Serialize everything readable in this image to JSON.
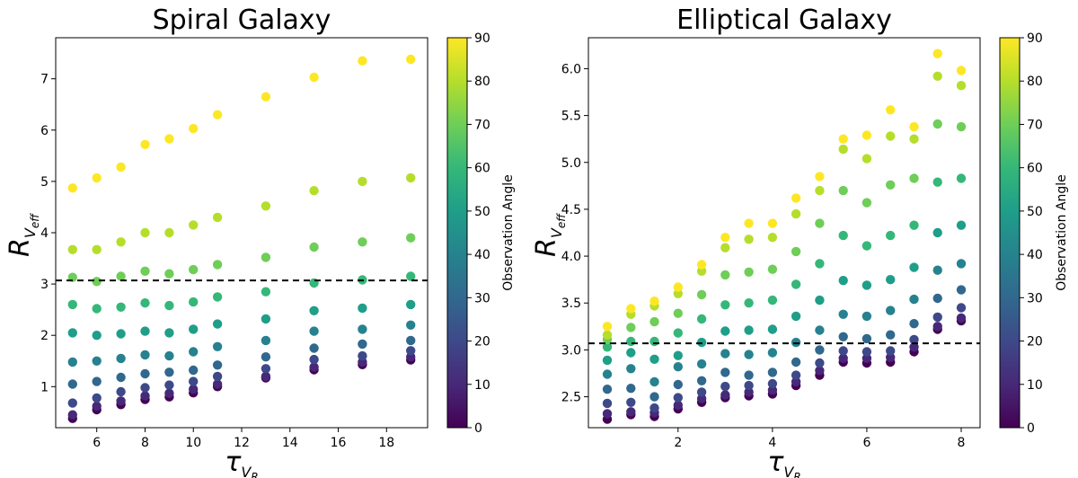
{
  "figure": {
    "colorbar_label": "Observation Angle",
    "colorbar_ticks": [
      "0",
      "10",
      "20",
      "30",
      "40",
      "50",
      "60",
      "70",
      "80",
      "90"
    ],
    "reference_line_y": 3.07
  },
  "chart_data": [
    {
      "type": "scatter",
      "title": "Spiral Galaxy",
      "xlabel": "τ_{V_R}",
      "ylabel": "R_{V_eff}",
      "xlim": [
        4.3,
        19.7
      ],
      "ylim": [
        0.2,
        7.8
      ],
      "xticks": [
        6,
        8,
        10,
        12,
        14,
        16,
        18
      ],
      "yticks": [
        1,
        2,
        3,
        4,
        5,
        6,
        7
      ],
      "x": [
        5,
        6,
        7,
        8,
        9,
        10,
        11,
        13,
        15,
        17,
        19
      ],
      "color_scale": {
        "label": "Observation Angle",
        "range": [
          0,
          90
        ],
        "colormap": "viridis"
      },
      "angles": [
        0,
        10,
        20,
        30,
        40,
        50,
        60,
        70,
        80,
        90
      ],
      "series": [
        {
          "angle": 0,
          "values": [
            0.38,
            0.55,
            0.65,
            0.75,
            0.8,
            0.88,
            1.0,
            1.17,
            1.33,
            1.43,
            1.52
          ]
        },
        {
          "angle": 10,
          "values": [
            0.45,
            0.62,
            0.72,
            0.82,
            0.87,
            0.95,
            1.05,
            1.2,
            1.38,
            1.48,
            1.58
          ]
        },
        {
          "angle": 20,
          "values": [
            0.68,
            0.78,
            0.9,
            0.98,
            1.03,
            1.1,
            1.2,
            1.35,
            1.53,
            1.6,
            1.7
          ]
        },
        {
          "angle": 30,
          "values": [
            1.05,
            1.1,
            1.18,
            1.25,
            1.28,
            1.32,
            1.42,
            1.58,
            1.75,
            1.83,
            1.9
          ]
        },
        {
          "angle": 40,
          "values": [
            1.48,
            1.5,
            1.55,
            1.62,
            1.6,
            1.68,
            1.78,
            1.9,
            2.08,
            2.12,
            2.2
          ]
        },
        {
          "angle": 50,
          "values": [
            2.05,
            2.0,
            2.03,
            2.08,
            2.05,
            2.12,
            2.22,
            2.32,
            2.48,
            2.53,
            2.6
          ]
        },
        {
          "angle": 60,
          "values": [
            2.6,
            2.52,
            2.55,
            2.63,
            2.58,
            2.65,
            2.75,
            2.85,
            3.02,
            3.08,
            3.15
          ]
        },
        {
          "angle": 70,
          "values": [
            3.13,
            3.05,
            3.15,
            3.25,
            3.2,
            3.28,
            3.38,
            3.52,
            3.72,
            3.82,
            3.9
          ]
        },
        {
          "angle": 80,
          "values": [
            3.67,
            3.67,
            3.82,
            4.0,
            4.0,
            4.15,
            4.3,
            4.52,
            4.82,
            5.0,
            5.07
          ]
        },
        {
          "angle": 90,
          "values": [
            4.87,
            5.07,
            5.28,
            5.72,
            5.83,
            6.03,
            6.3,
            6.65,
            7.03,
            7.35,
            7.38
          ]
        }
      ]
    },
    {
      "type": "scatter",
      "title": "Elliptical Galaxy",
      "xlabel": "τ_{V_R}",
      "ylabel": "R_{V_eff}",
      "xlim": [
        0.1,
        8.4
      ],
      "ylim": [
        2.17,
        6.33
      ],
      "xticks": [
        2,
        4,
        6,
        8
      ],
      "yticks": [
        2.5,
        3.0,
        3.5,
        4.0,
        4.5,
        5.0,
        5.5,
        6.0
      ],
      "x": [
        0.5,
        1.0,
        1.5,
        2.0,
        2.5,
        3.0,
        3.5,
        4.0,
        4.5,
        5.0,
        5.5,
        6.0,
        6.5,
        7.0,
        7.5,
        8.0
      ],
      "color_scale": {
        "label": "Observation Angle",
        "range": [
          0,
          90
        ],
        "colormap": "viridis"
      },
      "angles": [
        0,
        10,
        20,
        30,
        40,
        50,
        60,
        70,
        80,
        90
      ],
      "series": [
        {
          "angle": 0,
          "values": [
            2.26,
            2.31,
            2.29,
            2.37,
            2.44,
            2.49,
            2.51,
            2.53,
            2.62,
            2.73,
            2.87,
            2.86,
            2.87,
            2.98,
            3.22,
            3.31
          ]
        },
        {
          "angle": 10,
          "values": [
            2.32,
            2.34,
            2.33,
            2.41,
            2.48,
            2.52,
            2.55,
            2.57,
            2.66,
            2.78,
            2.91,
            2.91,
            2.92,
            3.03,
            3.25,
            3.34
          ]
        },
        {
          "angle": 20,
          "values": [
            2.43,
            2.44,
            2.38,
            2.49,
            2.55,
            2.61,
            2.62,
            2.64,
            2.73,
            2.86,
            2.99,
            2.98,
            2.99,
            3.11,
            3.35,
            3.45
          ]
        },
        {
          "angle": 30,
          "values": [
            2.58,
            2.59,
            2.5,
            2.63,
            2.67,
            2.76,
            2.73,
            2.76,
            2.87,
            3.0,
            3.14,
            3.12,
            3.16,
            3.28,
            3.55,
            3.64
          ]
        },
        {
          "angle": 40,
          "values": [
            2.74,
            2.8,
            2.66,
            2.82,
            2.85,
            2.96,
            2.95,
            2.97,
            3.08,
            3.21,
            3.38,
            3.36,
            3.42,
            3.54,
            3.85,
            3.92
          ]
        },
        {
          "angle": 50,
          "values": [
            2.89,
            2.97,
            2.9,
            2.94,
            3.08,
            3.2,
            3.21,
            3.22,
            3.36,
            3.53,
            3.74,
            3.69,
            3.75,
            3.88,
            4.25,
            4.33
          ]
        },
        {
          "angle": 60,
          "values": [
            3.03,
            3.09,
            3.09,
            3.18,
            3.33,
            3.48,
            3.5,
            3.53,
            3.7,
            3.92,
            4.22,
            4.11,
            4.22,
            4.33,
            4.79,
            4.83
          ]
        },
        {
          "angle": 70,
          "values": [
            3.11,
            3.24,
            3.3,
            3.39,
            3.59,
            3.8,
            3.83,
            3.86,
            4.05,
            4.35,
            4.7,
            4.57,
            4.76,
            4.83,
            5.41,
            5.38
          ]
        },
        {
          "angle": 80,
          "values": [
            3.16,
            3.38,
            3.47,
            3.6,
            3.84,
            4.09,
            4.18,
            4.2,
            4.45,
            4.7,
            5.14,
            5.04,
            5.28,
            5.25,
            5.92,
            5.82
          ]
        },
        {
          "angle": 90,
          "values": [
            3.25,
            3.44,
            3.52,
            3.67,
            3.91,
            4.2,
            4.35,
            4.35,
            4.62,
            4.85,
            5.25,
            5.29,
            5.56,
            5.38,
            6.16,
            5.98
          ]
        }
      ]
    }
  ]
}
